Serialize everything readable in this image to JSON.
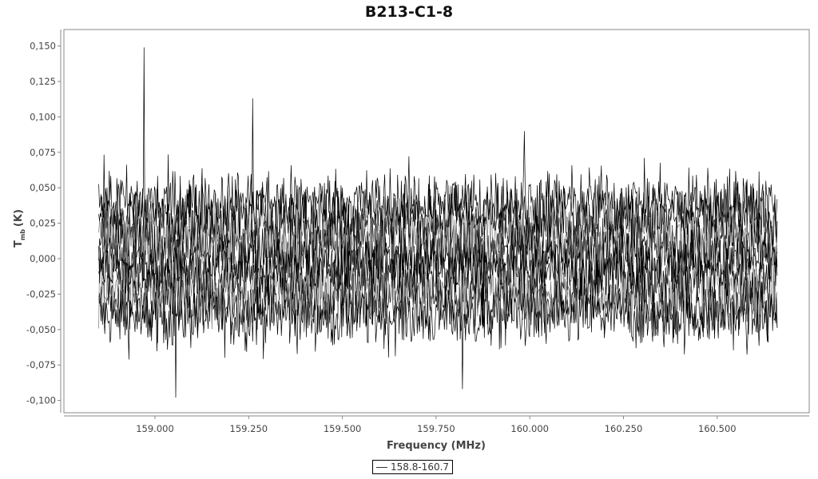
{
  "chart_data": {
    "type": "line",
    "title": "B213-C1-8",
    "xlabel": "Frequency (MHz)",
    "ylabel": "T",
    "ylabel_sub": "mb",
    "ylabel_unit": "(K)",
    "xlim": [
      158.76,
      160.75
    ],
    "ylim": [
      -0.112,
      0.162
    ],
    "x_ticks": [
      "159.000",
      "159.250",
      "159.500",
      "159.750",
      "160.000",
      "160.250",
      "160.500"
    ],
    "x_tick_values": [
      159.0,
      159.25,
      159.5,
      159.75,
      160.0,
      160.25,
      160.5
    ],
    "y_ticks": [
      "0,150",
      "0,125",
      "0,100",
      "0,075",
      "0,050",
      "0,025",
      "0,000",
      "-0,025",
      "-0,050",
      "-0,075",
      "-0,100"
    ],
    "y_tick_values": [
      0.15,
      0.125,
      0.1,
      0.075,
      0.05,
      0.025,
      0,
      -0.025,
      -0.05,
      -0.075,
      -0.1
    ],
    "series": [
      {
        "name": "158.8-160.7",
        "x_range": [
          158.85,
          160.66
        ],
        "noise_rms": 0.015,
        "baseline_offsets": [
          -0.04,
          -0.03,
          -0.02,
          -0.01,
          0,
          0.01,
          0.02,
          0.03,
          0.04
        ],
        "peaks": [
          {
            "x": 158.97,
            "y": 0.149
          },
          {
            "x": 159.26,
            "y": 0.113
          },
          {
            "x": 159.055,
            "y": -0.098
          },
          {
            "x": 159.985,
            "y": 0.09
          },
          {
            "x": 159.82,
            "y": -0.092
          }
        ]
      }
    ],
    "grid": false,
    "legend": "bottom-center",
    "color": "#000000"
  }
}
